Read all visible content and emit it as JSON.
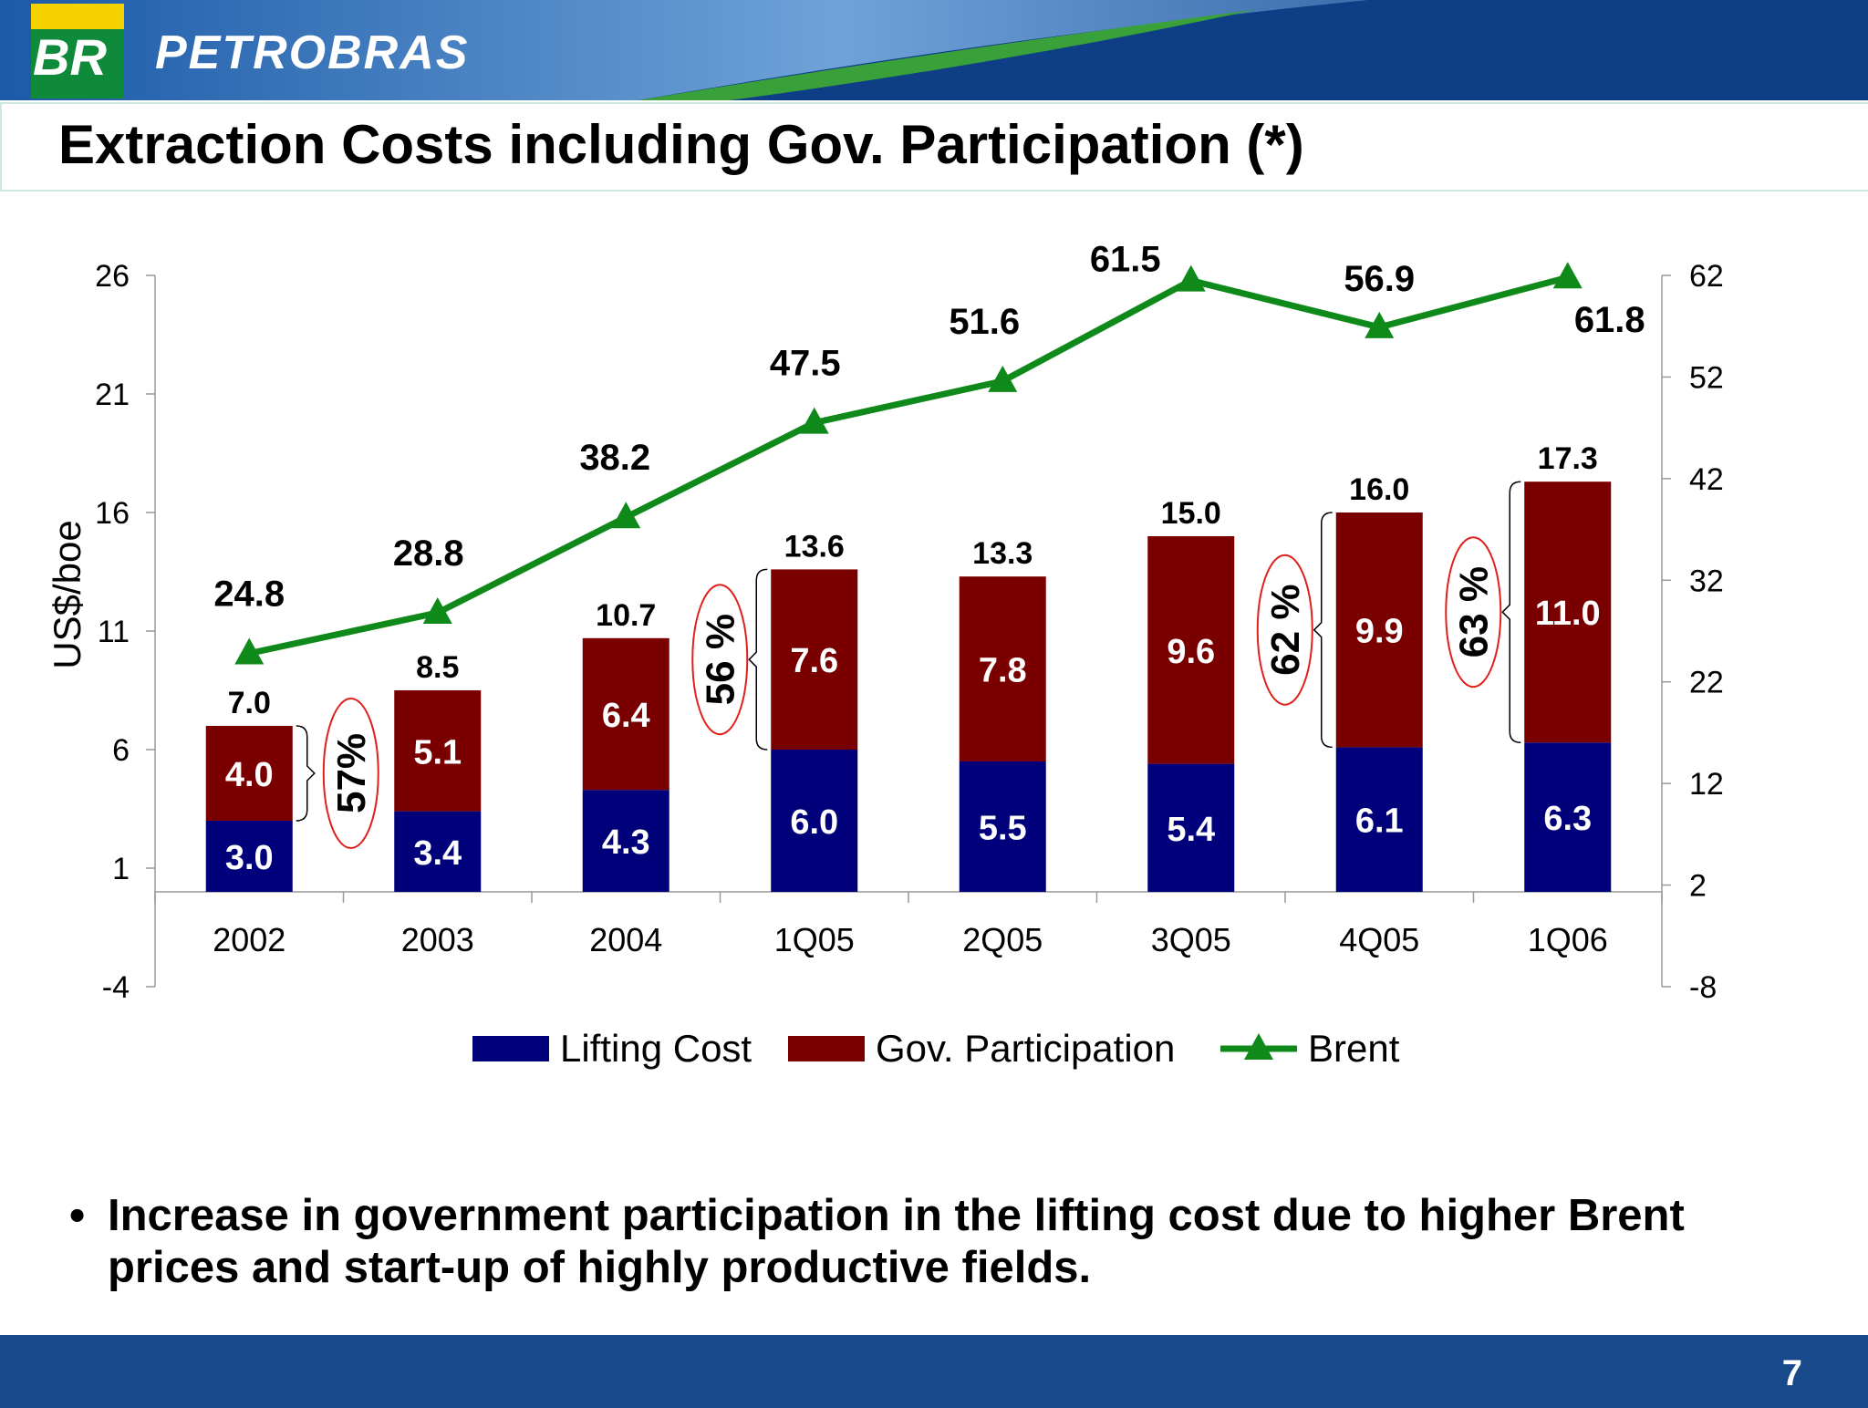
{
  "header": {
    "logo": "BR",
    "brand": "PETROBRAS"
  },
  "title": "Extraction Costs including Gov. Participation (*)",
  "chart_data": {
    "type": "bar",
    "categories": [
      "2002",
      "2003",
      "2004",
      "1Q05",
      "2Q05",
      "3Q05",
      "4Q05",
      "1Q06"
    ],
    "series": [
      {
        "name": "Lifting Cost",
        "type": "stacked-bar",
        "axis": "left",
        "color": "#00007a",
        "values": [
          3.0,
          3.4,
          4.3,
          6.0,
          5.5,
          5.4,
          6.1,
          6.3
        ],
        "labels": [
          "3.0",
          "3.4",
          "4.3",
          "6.0",
          "5.5",
          "5.4",
          "6.1",
          "6.3"
        ]
      },
      {
        "name": "Gov. Participation",
        "type": "stacked-bar",
        "axis": "left",
        "color": "#7a0000",
        "values": [
          4.0,
          5.1,
          6.4,
          7.6,
          7.8,
          9.6,
          9.9,
          11.0
        ],
        "labels": [
          "4.0",
          "5.1",
          "6.4",
          "7.6",
          "7.8",
          "9.6",
          "9.9",
          "11.0"
        ]
      },
      {
        "name": "Brent",
        "type": "line",
        "axis": "right",
        "color": "#0f8a1a",
        "marker": "triangle",
        "values": [
          24.8,
          28.8,
          38.2,
          47.5,
          51.6,
          61.5,
          56.9,
          61.8
        ],
        "labels": [
          "24.8",
          "28.8",
          "38.2",
          "47.5",
          "51.6",
          "61.5",
          "56.9",
          "61.8"
        ]
      }
    ],
    "totals": [
      7.0,
      8.5,
      10.7,
      13.6,
      13.3,
      15.0,
      16.0,
      17.3
    ],
    "total_labels": [
      "7.0",
      "8.5",
      "10.7",
      "13.6",
      "13.3",
      "15.0",
      "16.0",
      "17.3"
    ],
    "ylabel": "US$/boe",
    "ylim": [
      -4,
      26
    ],
    "yticks": [
      26,
      21,
      16,
      11,
      6,
      1,
      -4
    ],
    "y2lim": [
      -8,
      62
    ],
    "y2ticks": [
      62,
      52,
      42,
      32,
      22,
      12,
      2,
      -8
    ],
    "baseline": 0,
    "annotations": [
      {
        "category": "2002",
        "text": "57%"
      },
      {
        "category": "1Q05",
        "text": "56 %"
      },
      {
        "category": "4Q05",
        "text": "62 %"
      },
      {
        "category": "1Q06",
        "text": "63 %"
      }
    ],
    "legend_position": "bottom",
    "grid": false
  },
  "bullet": "Increase in government participation in the lifting cost due to higher Brent prices and start-up of highly productive fields.",
  "page_number": "7"
}
